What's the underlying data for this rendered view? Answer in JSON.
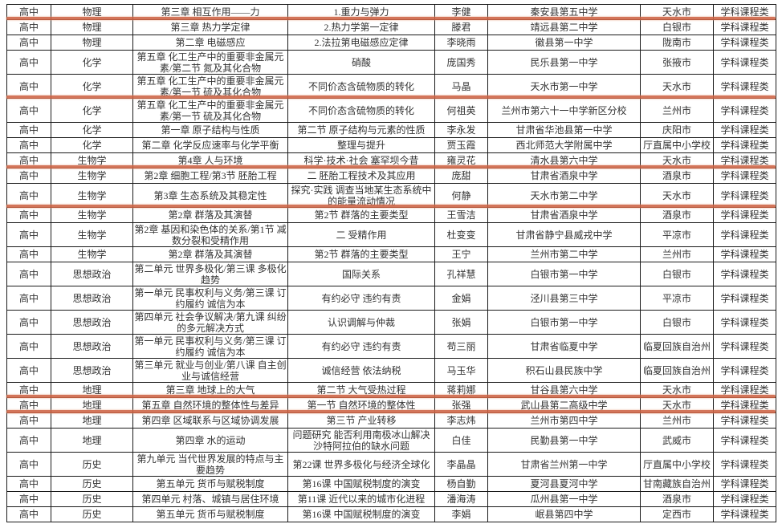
{
  "document": {
    "type": "course-award-list",
    "level_label": "高中",
    "category_label": "学科课程类"
  },
  "colors": {
    "underline_accent": "#cd6344",
    "underline_glow": "#e6a184",
    "border": "#1a1a1a",
    "text": "#333333",
    "background": "#ffffff"
  },
  "annotations": {
    "red_underline_name": "red-underline-annotation",
    "underlined_row_indexes": [
      0,
      4,
      8,
      10,
      19,
      20
    ]
  },
  "table": {
    "column_names": [
      "level",
      "subject",
      "chapter",
      "lesson",
      "teacher",
      "school",
      "city",
      "category"
    ],
    "rows": [
      {
        "tall": false,
        "underline": true,
        "cells": [
          "高中",
          "物理",
          "第三章 相互作用——力",
          "1.重力与弹力",
          "李健",
          "秦安县第五中学",
          "天水市",
          "学科课程类"
        ]
      },
      {
        "tall": false,
        "underline": false,
        "cells": [
          "高中",
          "物理",
          "第三章 热力学定律",
          "2.热力学第一定律",
          "滕君",
          "靖远县第二中学",
          "白银市",
          "学科课程类"
        ]
      },
      {
        "tall": false,
        "underline": false,
        "cells": [
          "高中",
          "物理",
          "第二章 电磁感应",
          "2.法拉第电磁感应定律",
          "李晓雨",
          "徽县第一中学",
          "陇南市",
          "学科课程类"
        ]
      },
      {
        "tall": true,
        "underline": false,
        "cells": [
          "高中",
          "化学",
          "第五章 化工生产中的重要非金属元素/第二节 氮及其化合物",
          "硝酸",
          "庞国秀",
          "民乐县第一中学",
          "张掖市",
          "学科课程类"
        ]
      },
      {
        "tall": true,
        "underline": true,
        "cells": [
          "高中",
          "化学",
          "第五章 化工生产中的重要非金属元素/第一节 硫及其化合物",
          "不同价态含硫物质的转化",
          "马晶",
          "天水市第一中学",
          "天水市",
          "学科课程类"
        ]
      },
      {
        "tall": true,
        "underline": false,
        "cells": [
          "高中",
          "化学",
          "第五章 化工生产中的重要非金属元素/第一节 硫及其化合物",
          "不同价态含硫物质的转化",
          "何祖英",
          "兰州市第六十一中学新区分校",
          "兰州市",
          "学科课程类"
        ]
      },
      {
        "tall": false,
        "underline": false,
        "cells": [
          "高中",
          "化学",
          "第一章 原子结构与性质",
          "第二节 原子结构与元素的性质",
          "李永发",
          "甘肃省华池县第一中学",
          "庆阳市",
          "学科课程类"
        ]
      },
      {
        "tall": false,
        "underline": false,
        "cells": [
          "高中",
          "化学",
          "第二章 化学反应速率与化学平衡",
          "整理与提升",
          "贾玉霞",
          "西北师范大学附属中学",
          "厅直属中小学校",
          "学科课程类"
        ]
      },
      {
        "tall": false,
        "underline": true,
        "cells": [
          "高中",
          "生物学",
          "第4章 人与环境",
          "科学·技术·社会 塞罕坝今昔",
          "雍灵花",
          "清水县第六中学",
          "天水市",
          "学科课程类"
        ]
      },
      {
        "tall": false,
        "underline": false,
        "cells": [
          "高中",
          "生物学",
          "第2章 细胞工程/第3节 胚胎工程",
          "二 胚胎工程技术及其应用",
          "庞甜",
          "甘肃省酒泉中学",
          "酒泉市",
          "学科课程类"
        ]
      },
      {
        "tall": true,
        "underline": true,
        "cells": [
          "高中",
          "生物学",
          "第3章 生态系统及其稳定性",
          "探究·实践 调查当地某生态系统中的能量流动情况",
          "何静",
          "天水市第二中学",
          "天水市",
          "学科课程类"
        ]
      },
      {
        "tall": false,
        "underline": false,
        "cells": [
          "高中",
          "生物学",
          "第2章 群落及其演替",
          "第2节 群落的主要类型",
          "王雪洁",
          "甘肃省酒泉中学",
          "酒泉市",
          "学科课程类"
        ]
      },
      {
        "tall": true,
        "underline": false,
        "cells": [
          "高中",
          "生物学",
          "第2章 基因和染色体的关系/第1节 减数分裂和受精作用",
          "二 受精作用",
          "杜变变",
          "甘肃省静宁县威戎中学",
          "平凉市",
          "学科课程类"
        ]
      },
      {
        "tall": false,
        "underline": false,
        "cells": [
          "高中",
          "生物学",
          "第2章 群落及其演替",
          "第2节 群落的主要类型",
          "王宁",
          "兰州市第二中学",
          "兰州市",
          "学科课程类"
        ]
      },
      {
        "tall": true,
        "underline": false,
        "cells": [
          "高中",
          "思想政治",
          "第二单元 世界多极化/第三课 多极化趋势",
          "国际关系",
          "孔祥慧",
          "白银市第一中学",
          "白银市",
          "学科课程类"
        ]
      },
      {
        "tall": true,
        "underline": false,
        "cells": [
          "高中",
          "思想政治",
          "第一单元 民事权利与义务/第三课 订约履约 诚信为本",
          "有约必守 违约有责",
          "金娟",
          "泾川县第三中学",
          "平凉市",
          "学科课程类"
        ]
      },
      {
        "tall": true,
        "underline": false,
        "cells": [
          "高中",
          "思想政治",
          "第四单元 社会争议解决/第九课 纠纷的多元解决方式",
          "认识调解与仲裁",
          "张娟",
          "白银市第一中学",
          "白银市",
          "学科课程类"
        ]
      },
      {
        "tall": true,
        "underline": false,
        "cells": [
          "高中",
          "思想政治",
          "第一单元 民事权利与义务/第三课 订约履约 诚信为本",
          "有约必守 违约有责",
          "苟三丽",
          "甘肃省临夏中学",
          "临夏回族自治州",
          "学科课程类"
        ]
      },
      {
        "tall": true,
        "underline": false,
        "cells": [
          "高中",
          "思想政治",
          "第三单元 就业与创业/第八课 自主创业与诚信经营",
          "诚信经营 依法纳税",
          "马玉华",
          "积石山县民族中学",
          "临夏回族自治州",
          "学科课程类"
        ]
      },
      {
        "tall": false,
        "underline": true,
        "cells": [
          "高中",
          "地理",
          "第三章 地球上的大气",
          "第二节 大气受热过程",
          "蒋莉娜",
          "甘谷县第六中学",
          "天水市",
          "学科课程类"
        ]
      },
      {
        "tall": false,
        "underline": true,
        "cells": [
          "高中",
          "地理",
          "第五章 自然环境的整体性与差异",
          "第一节 自然环境的整体性",
          "张强",
          "武山县第二高级中学",
          "天水市",
          "学科课程类"
        ]
      },
      {
        "tall": false,
        "underline": false,
        "cells": [
          "高中",
          "地理",
          "第四章 区域联系与区域协调发展",
          "第三节 产业转移",
          "李志炜",
          "兰州市第四中学",
          "兰州市",
          "学科课程类"
        ]
      },
      {
        "tall": true,
        "underline": false,
        "cells": [
          "高中",
          "地理",
          "第四章 水的运动",
          "问题研究 能否利用南极冰山解决沙特阿拉伯的缺水问题",
          "白佳",
          "民勤县第一中学",
          "武威市",
          "学科课程类"
        ]
      },
      {
        "tall": true,
        "underline": false,
        "cells": [
          "高中",
          "历史",
          "第九单元 当代世界发展的特点与主要趋势",
          "第22课 世界多极化与经济全球化",
          "李晶晶",
          "甘肃省兰州第一中学",
          "厅直属中小学校",
          "学科课程类"
        ]
      },
      {
        "tall": false,
        "underline": false,
        "cells": [
          "高中",
          "历史",
          "第五单元 货币与赋税制度",
          "第16课 中国赋税制度的演变",
          "杨自勤",
          "夏河县夏河中学",
          "甘南藏族自治州",
          "学科课程类"
        ]
      },
      {
        "tall": false,
        "underline": false,
        "cells": [
          "高中",
          "历史",
          "第四单元 村落、城镇与居住环境",
          "第11课 近代以来的城市化进程",
          "潘海涛",
          "瓜州县第一中学",
          "酒泉市",
          "学科课程类"
        ]
      },
      {
        "tall": false,
        "underline": false,
        "cells": [
          "高中",
          "历史",
          "第五单元 货币与赋税制度",
          "第16课 中国赋税制度的演变",
          "李娟",
          "岷县第四中学",
          "定西市",
          "学科课程类"
        ]
      }
    ]
  }
}
